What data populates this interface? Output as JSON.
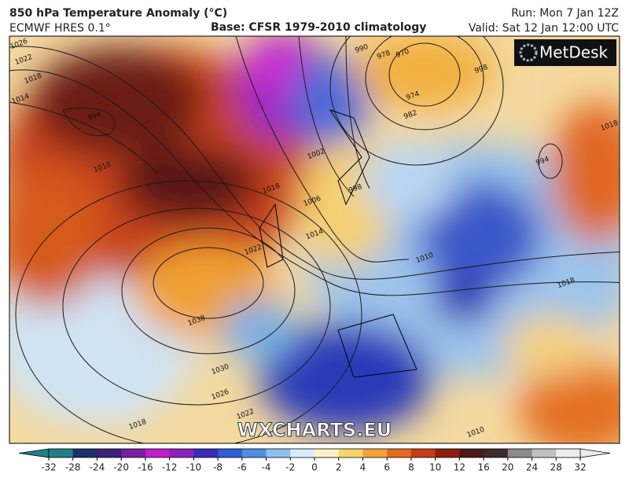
{
  "header": {
    "title": "850 hPa Temperature Anomaly (°C)",
    "model": "ECMWF HRES 0.1°",
    "base": "Base: CFSR 1979-2010 climatology",
    "run": "Run: Mon 7 Jan 12Z",
    "valid": "Valid: Sat 12 Jan 12:00 UTC"
  },
  "logo": "MetDesk",
  "watermark": "WXCHARTS.EU",
  "isobar_labels": [
    "1026",
    "1022",
    "1018",
    "1014",
    "994",
    "1010",
    "1018",
    "1014",
    "1006",
    "1002",
    "998",
    "990",
    "978",
    "970",
    "974",
    "982",
    "994",
    "998",
    "1010",
    "1018",
    "1038",
    "1030",
    "1026",
    "1022",
    "1018",
    "1010",
    "1018",
    "1022"
  ],
  "colorbar": {
    "ticks": [
      -32,
      -28,
      -24,
      -20,
      -16,
      -12,
      -10,
      -8,
      -6,
      -4,
      -2,
      0,
      2,
      4,
      6,
      8,
      10,
      12,
      16,
      20,
      24,
      28,
      32
    ],
    "colors": [
      "#1f7f86",
      "#1b2f6a",
      "#3b1f78",
      "#7a1ea0",
      "#c21ec8",
      "#8a22c0",
      "#3a2cb8",
      "#2f5fd0",
      "#4f8ee0",
      "#8cc0ee",
      "#d8ecf8",
      "#fbf3c8",
      "#f8d46a",
      "#f3a33a",
      "#e46a22",
      "#c63a14",
      "#8e1e10",
      "#4c1a16",
      "#3a2a28",
      "#8a8a8a",
      "#c0c0c0",
      "#ececec"
    ]
  }
}
